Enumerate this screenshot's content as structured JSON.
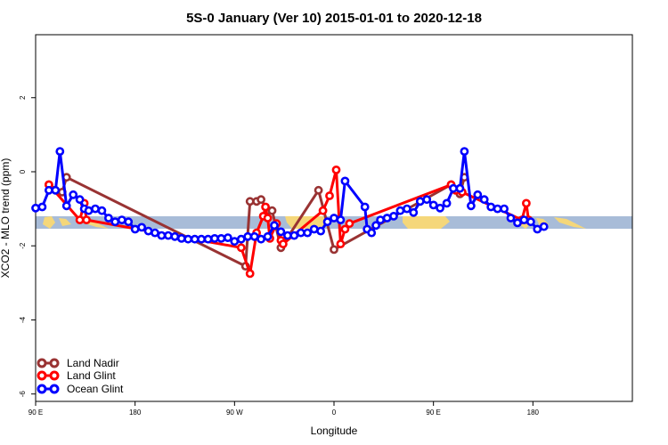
{
  "chart_data": {
    "type": "line",
    "title": "5S-0 January (Ver 10)   2015-01-01 to 2020-12-18",
    "xlabel": "Longitude",
    "ylabel": "XCO2 - MLO trend (ppm)",
    "xlim": [
      -90,
      180
    ],
    "ylim": [
      -6.2,
      3.7
    ],
    "x_ticks": [
      {
        "value": -90,
        "label": "90 E"
      },
      {
        "value": -45,
        "label": "180"
      },
      {
        "value": 0,
        "label": "90 W"
      },
      {
        "value": 45,
        "label": "0"
      },
      {
        "value": 90,
        "label": "90 E"
      },
      {
        "value": 135,
        "label": "180"
      }
    ],
    "y_ticks": [
      {
        "value": -6,
        "label": "-6"
      },
      {
        "value": -4,
        "label": "-4"
      },
      {
        "value": -2,
        "label": "-2"
      },
      {
        "value": 0,
        "label": "0"
      },
      {
        "value": 2,
        "label": "2"
      }
    ],
    "legend_position": "bottom-left",
    "colors": {
      "land_nadir": "#993333",
      "land_glint": "#ff0000",
      "ocean_glint": "#0000ff",
      "map_ocean": "#a8bcd8",
      "map_land": "#f5d77a"
    },
    "series": [
      {
        "name": "Land Nadir",
        "color": "#993333",
        "points": [
          [
            -84,
            -0.35
          ],
          [
            -78,
            -0.55
          ],
          [
            -76,
            -0.15
          ],
          [
            5,
            -2.55
          ],
          [
            7,
            -0.8
          ],
          [
            10,
            -0.8
          ],
          [
            12,
            -0.75
          ],
          [
            15,
            -1.05
          ],
          [
            17,
            -1.05
          ],
          [
            21,
            -2.05
          ],
          [
            38,
            -0.5
          ],
          [
            45,
            -2.1
          ],
          [
            98,
            -0.35
          ],
          [
            102,
            -0.6
          ],
          [
            104,
            -0.15
          ]
        ]
      },
      {
        "name": "Land Glint",
        "color": "#ff0000",
        "points": [
          [
            -84,
            -0.35
          ],
          [
            -70,
            -1.3
          ],
          [
            -68,
            -0.85
          ],
          [
            -67,
            -1.3
          ],
          [
            3,
            -2.05
          ],
          [
            7,
            -2.75
          ],
          [
            10,
            -1.65
          ],
          [
            13,
            -1.2
          ],
          [
            14,
            -0.95
          ],
          [
            15,
            -1.25
          ],
          [
            16,
            -1.8
          ],
          [
            19,
            -1.4
          ],
          [
            21,
            -1.85
          ],
          [
            22,
            -1.95
          ],
          [
            40,
            -1.05
          ],
          [
            43,
            -0.65
          ],
          [
            46,
            0.05
          ],
          [
            48,
            -1.95
          ],
          [
            50,
            -1.55
          ],
          [
            52,
            -1.4
          ],
          [
            98,
            -0.35
          ],
          [
            100,
            -0.5
          ],
          [
            103,
            -0.55
          ],
          [
            130,
            -1.3
          ],
          [
            132,
            -0.85
          ],
          [
            133,
            -1.3
          ]
        ]
      },
      {
        "name": "Ocean Glint",
        "color": "#0000ff",
        "points": [
          [
            -90,
            -0.98
          ],
          [
            -87,
            -0.95
          ],
          [
            -84,
            -0.5
          ],
          [
            -81,
            -0.5
          ],
          [
            -79,
            0.55
          ],
          [
            -76,
            -0.92
          ],
          [
            -73,
            -0.62
          ],
          [
            -70,
            -0.75
          ],
          [
            -68,
            -1.0
          ],
          [
            -66,
            -1.05
          ],
          [
            -63,
            -1.0
          ],
          [
            -60,
            -1.05
          ],
          [
            -57,
            -1.25
          ],
          [
            -54,
            -1.35
          ],
          [
            -51,
            -1.3
          ],
          [
            -48,
            -1.35
          ],
          [
            -45,
            -1.55
          ],
          [
            -42,
            -1.5
          ],
          [
            -39,
            -1.6
          ],
          [
            -36,
            -1.65
          ],
          [
            -33,
            -1.72
          ],
          [
            -30,
            -1.72
          ],
          [
            -27,
            -1.75
          ],
          [
            -24,
            -1.8
          ],
          [
            -21,
            -1.82
          ],
          [
            -18,
            -1.82
          ],
          [
            -15,
            -1.82
          ],
          [
            -12,
            -1.82
          ],
          [
            -9,
            -1.8
          ],
          [
            -6,
            -1.8
          ],
          [
            -3,
            -1.78
          ],
          [
            0,
            -1.88
          ],
          [
            3,
            -1.82
          ],
          [
            6,
            -1.75
          ],
          [
            9,
            -1.75
          ],
          [
            12,
            -1.82
          ],
          [
            15,
            -1.75
          ],
          [
            18,
            -1.45
          ],
          [
            21,
            -1.62
          ],
          [
            24,
            -1.72
          ],
          [
            27,
            -1.72
          ],
          [
            30,
            -1.65
          ],
          [
            33,
            -1.65
          ],
          [
            36,
            -1.55
          ],
          [
            39,
            -1.6
          ],
          [
            42,
            -1.35
          ],
          [
            45,
            -1.25
          ],
          [
            48,
            -1.3
          ],
          [
            50,
            -0.25
          ],
          [
            59,
            -0.95
          ],
          [
            60,
            -1.55
          ],
          [
            62,
            -1.65
          ],
          [
            64,
            -1.45
          ],
          [
            66,
            -1.3
          ],
          [
            69,
            -1.25
          ],
          [
            72,
            -1.2
          ],
          [
            75,
            -1.05
          ],
          [
            78,
            -1.0
          ],
          [
            81,
            -1.1
          ],
          [
            84,
            -0.8
          ],
          [
            87,
            -0.75
          ],
          [
            90,
            -0.9
          ],
          [
            93,
            -0.98
          ],
          [
            96,
            -0.85
          ],
          [
            99,
            -0.45
          ],
          [
            102,
            -0.45
          ],
          [
            104,
            0.55
          ],
          [
            107,
            -0.92
          ],
          [
            110,
            -0.62
          ],
          [
            113,
            -0.75
          ],
          [
            116,
            -0.95
          ],
          [
            119,
            -1.0
          ],
          [
            122,
            -1.0
          ],
          [
            125,
            -1.25
          ],
          [
            128,
            -1.38
          ],
          [
            131,
            -1.3
          ],
          [
            134,
            -1.35
          ],
          [
            137,
            -1.55
          ],
          [
            140,
            -1.48
          ]
        ]
      }
    ]
  }
}
